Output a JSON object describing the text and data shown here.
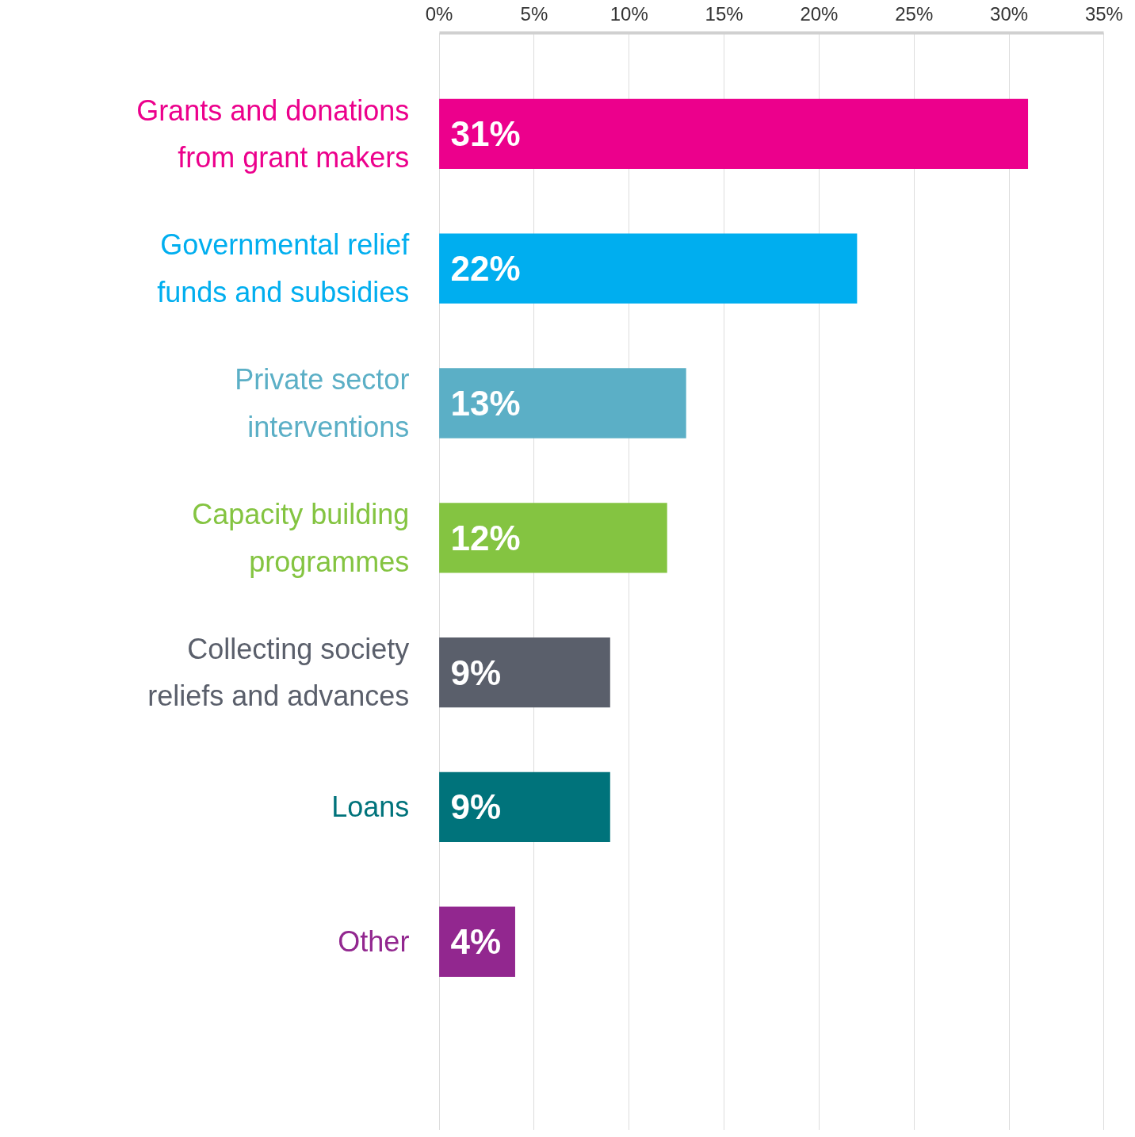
{
  "chart_data": {
    "type": "bar",
    "orientation": "horizontal",
    "categories": [
      "Grants and donations from grant makers",
      "Governmental relief funds and subsidies",
      "Private sector interventions",
      "Capacity building programmes",
      "Collecting society reliefs and advances",
      "Loans",
      "Other"
    ],
    "values": [
      31,
      22,
      13,
      12,
      9,
      9,
      4
    ],
    "colors": [
      "#ec008c",
      "#00aeef",
      "#5bafc6",
      "#84c441",
      "#5a5f6b",
      "#00737b",
      "#92278f"
    ],
    "value_labels": [
      "31%",
      "22%",
      "13%",
      "12%",
      "9%",
      "9%",
      "4%"
    ],
    "xlim": [
      0,
      35
    ],
    "xticks": [
      {
        "value": 0,
        "label": "0%"
      },
      {
        "value": 5,
        "label": "5%"
      },
      {
        "value": 10,
        "label": "10%"
      },
      {
        "value": 15,
        "label": "15%"
      },
      {
        "value": 20,
        "label": "20%"
      },
      {
        "value": 25,
        "label": "25%"
      },
      {
        "value": 30,
        "label": "30%"
      },
      {
        "value": 35,
        "label": "35%"
      }
    ],
    "grid": "x"
  }
}
